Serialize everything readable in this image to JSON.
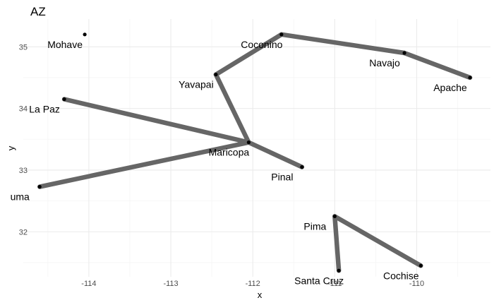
{
  "chart_data": {
    "type": "scatter",
    "title": "AZ",
    "xlabel": "x",
    "ylabel": "y",
    "xlim": [
      -114.8,
      -109.1
    ],
    "ylim": [
      31.27,
      35.45
    ],
    "x_ticks": [
      -114,
      -113,
      -112,
      -111,
      -110
    ],
    "x_tick_labels": [
      "-114",
      "-113",
      "-112",
      "-111",
      "-110"
    ],
    "y_ticks": [
      32,
      33,
      34,
      35
    ],
    "y_tick_labels": [
      "32",
      "33",
      "34",
      "35"
    ],
    "grid": true,
    "points": [
      {
        "label": "Mohave",
        "x": -114.05,
        "y": 35.2
      },
      {
        "label": "Coconino",
        "x": -111.65,
        "y": 35.2
      },
      {
        "label": "Navajo",
        "x": -110.15,
        "y": 34.9
      },
      {
        "label": "Apache",
        "x": -109.35,
        "y": 34.5
      },
      {
        "label": "Yavapai",
        "x": -112.45,
        "y": 34.55
      },
      {
        "label": "La Paz",
        "x": -114.3,
        "y": 34.15
      },
      {
        "label": "Maricopa",
        "x": -112.05,
        "y": 33.45
      },
      {
        "label": "Pinal",
        "x": -111.4,
        "y": 33.05
      },
      {
        "label": "uma",
        "x": -114.6,
        "y": 32.73
      },
      {
        "label": "Pima",
        "x": -111.0,
        "y": 32.25
      },
      {
        "label": "Santa Cruz",
        "x": -110.95,
        "y": 31.37
      },
      {
        "label": "Cochise",
        "x": -109.95,
        "y": 31.45
      }
    ],
    "edges": [
      [
        "Coconino",
        "Navajo"
      ],
      [
        "Navajo",
        "Apache"
      ],
      [
        "Coconino",
        "Yavapai"
      ],
      [
        "Yavapai",
        "Maricopa"
      ],
      [
        "La Paz",
        "Maricopa"
      ],
      [
        "Maricopa",
        "Pinal"
      ],
      [
        "uma",
        "Maricopa"
      ],
      [
        "Pima",
        "Santa Cruz"
      ],
      [
        "Pima",
        "Cochise"
      ]
    ],
    "colors": {
      "background": "#ffffff",
      "grid_major": "#ebebeb",
      "grid_minor": "#f5f5f5",
      "edge": "#666666",
      "point": "#000000"
    }
  }
}
